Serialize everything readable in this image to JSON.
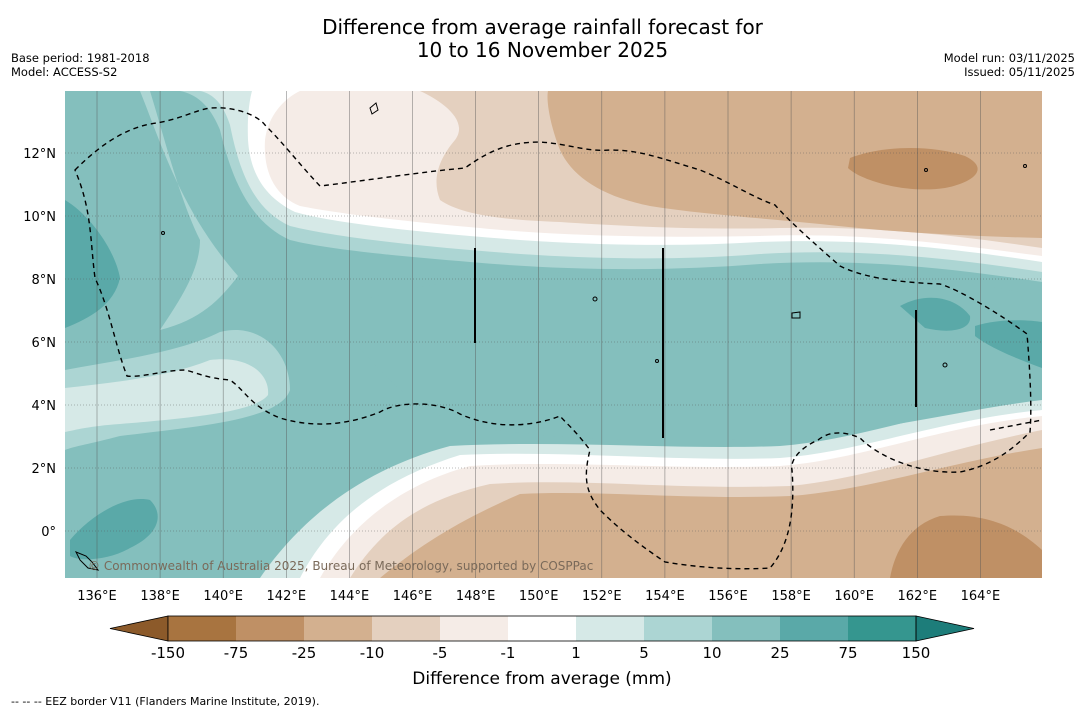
{
  "title": {
    "line1": "Difference from average rainfall forecast for",
    "line2": "10 to 16 November 2025"
  },
  "meta_left": {
    "base_period": "Base period: 1981-2018",
    "model": "Model: ACCESS-S2"
  },
  "meta_right": {
    "model_run": "Model run: 03/11/2025",
    "issued": "Issued: 05/11/2025"
  },
  "map": {
    "lon_labels": [
      "136°E",
      "138°E",
      "140°E",
      "142°E",
      "144°E",
      "146°E",
      "148°E",
      "150°E",
      "152°E",
      "154°E",
      "156°E",
      "158°E",
      "160°E",
      "162°E",
      "164°E"
    ],
    "lat_labels": [
      "12°N",
      "10°N",
      "8°N",
      "6°N",
      "4°N",
      "2°N",
      "0°"
    ],
    "copyright": "© Commonwealth of Australia 2025, Bureau of Meteorology, supported by COSPPac"
  },
  "colorbar": {
    "labels": [
      "-150",
      "-75",
      "-25",
      "-10",
      "-5",
      "-1",
      "1",
      "5",
      "10",
      "25",
      "75",
      "150"
    ],
    "colors": [
      "#a87440",
      "#bf9065",
      "#d3b08f",
      "#e4d0bf",
      "#f5ece7",
      "#ffffff",
      "#d6e9e7",
      "#acd5d3",
      "#84bfbd",
      "#5aa9a8",
      "#35968f"
    ],
    "low_extend_color": "#8c5a2a",
    "high_extend_color": "#1d7d7a",
    "title": "Difference from average (mm)"
  },
  "footnote": "--  --  -- EEZ border V11 (Flanders Marine Institute, 2019)."
}
